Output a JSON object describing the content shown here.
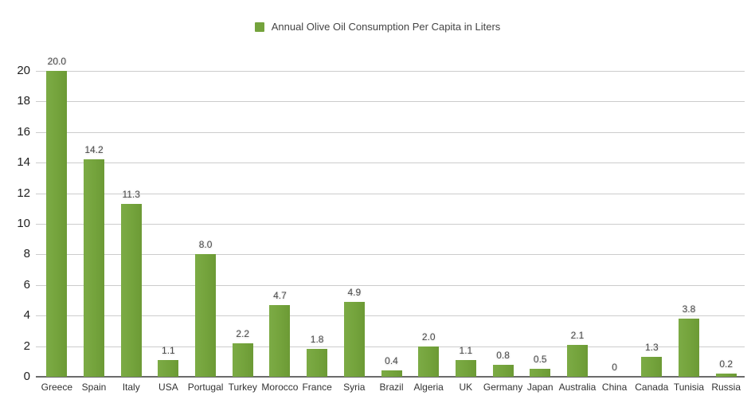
{
  "chart_data": {
    "type": "bar",
    "title": "",
    "legend": "Annual Olive Oil Consumption Per Capita in Liters",
    "legend_position": "top-center",
    "categories": [
      "Greece",
      "Spain",
      "Italy",
      "USA",
      "Portugal",
      "Turkey",
      "Morocco",
      "France",
      "Syria",
      "Brazil",
      "Algeria",
      "UK",
      "Germany",
      "Japan",
      "Australia",
      "China",
      "Canada",
      "Tunisia",
      "Russia"
    ],
    "values": [
      20.0,
      14.2,
      11.3,
      1.1,
      8.0,
      2.2,
      4.7,
      1.8,
      4.9,
      0.4,
      2.0,
      1.1,
      0.8,
      0.5,
      2.1,
      0,
      1.3,
      3.8,
      0.2
    ],
    "value_labels": [
      "20.0",
      "14.2",
      "11.3",
      "1.1",
      "8.0",
      "2.2",
      "4.7",
      "1.8",
      "4.9",
      "0.4",
      "2.0",
      "1.1",
      "0.8",
      "0.5",
      "2.1",
      "0",
      "1.3",
      "3.8",
      "0.2"
    ],
    "xlabel": "",
    "ylabel": "",
    "ylim": [
      0,
      20
    ],
    "yticks": [
      0,
      2,
      4,
      6,
      8,
      10,
      12,
      14,
      16,
      18,
      20
    ],
    "grid": true,
    "colors": {
      "bar": "#74A33C",
      "bar_light": "#7CAB45",
      "bar_dark": "#6C9A35",
      "gridline": "#CCCCCC",
      "axis_line": "#6B6B6B",
      "value_label": "#4A4A4A",
      "axis_label": "#333333",
      "y_label": "#1F1F1F",
      "legend_text": "#444444",
      "background": "#FFFFFF"
    }
  }
}
